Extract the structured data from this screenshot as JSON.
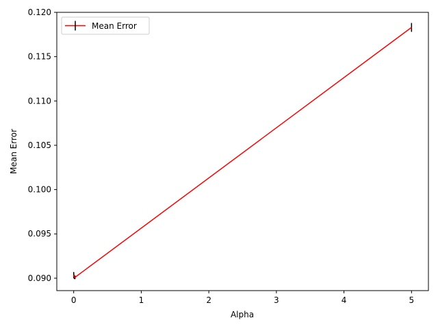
{
  "chart_data": {
    "type": "line",
    "title": "",
    "xlabel": "Alpha",
    "ylabel": "Mean Error",
    "xlim": [
      -0.25,
      5.25
    ],
    "ylim": [
      0.0886,
      0.12
    ],
    "xticks": [
      0,
      1,
      2,
      3,
      4,
      5
    ],
    "xtick_labels": [
      "0",
      "1",
      "2",
      "3",
      "4",
      "5"
    ],
    "yticks": [
      0.09,
      0.095,
      0.1,
      0.105,
      0.11,
      0.115,
      0.12
    ],
    "ytick_labels": [
      "0.090",
      "0.095",
      "0.100",
      "0.105",
      "0.110",
      "0.115",
      "0.120"
    ],
    "grid": false,
    "legend": {
      "location": "upper left",
      "entries": [
        "Mean Error"
      ]
    },
    "series": [
      {
        "name": "Mean Error",
        "color": "#ff0000",
        "errorbar_color": "#000000",
        "x": [
          0.0,
          0.001,
          0.005,
          0.01,
          0.02,
          5.0
        ],
        "y": [
          0.0904,
          0.0903,
          0.0902,
          0.0901,
          0.0901,
          0.1183
        ],
        "yerr": [
          0.0003,
          0.0003,
          0.0002,
          0.0002,
          0.0002,
          0.0005
        ]
      }
    ]
  }
}
